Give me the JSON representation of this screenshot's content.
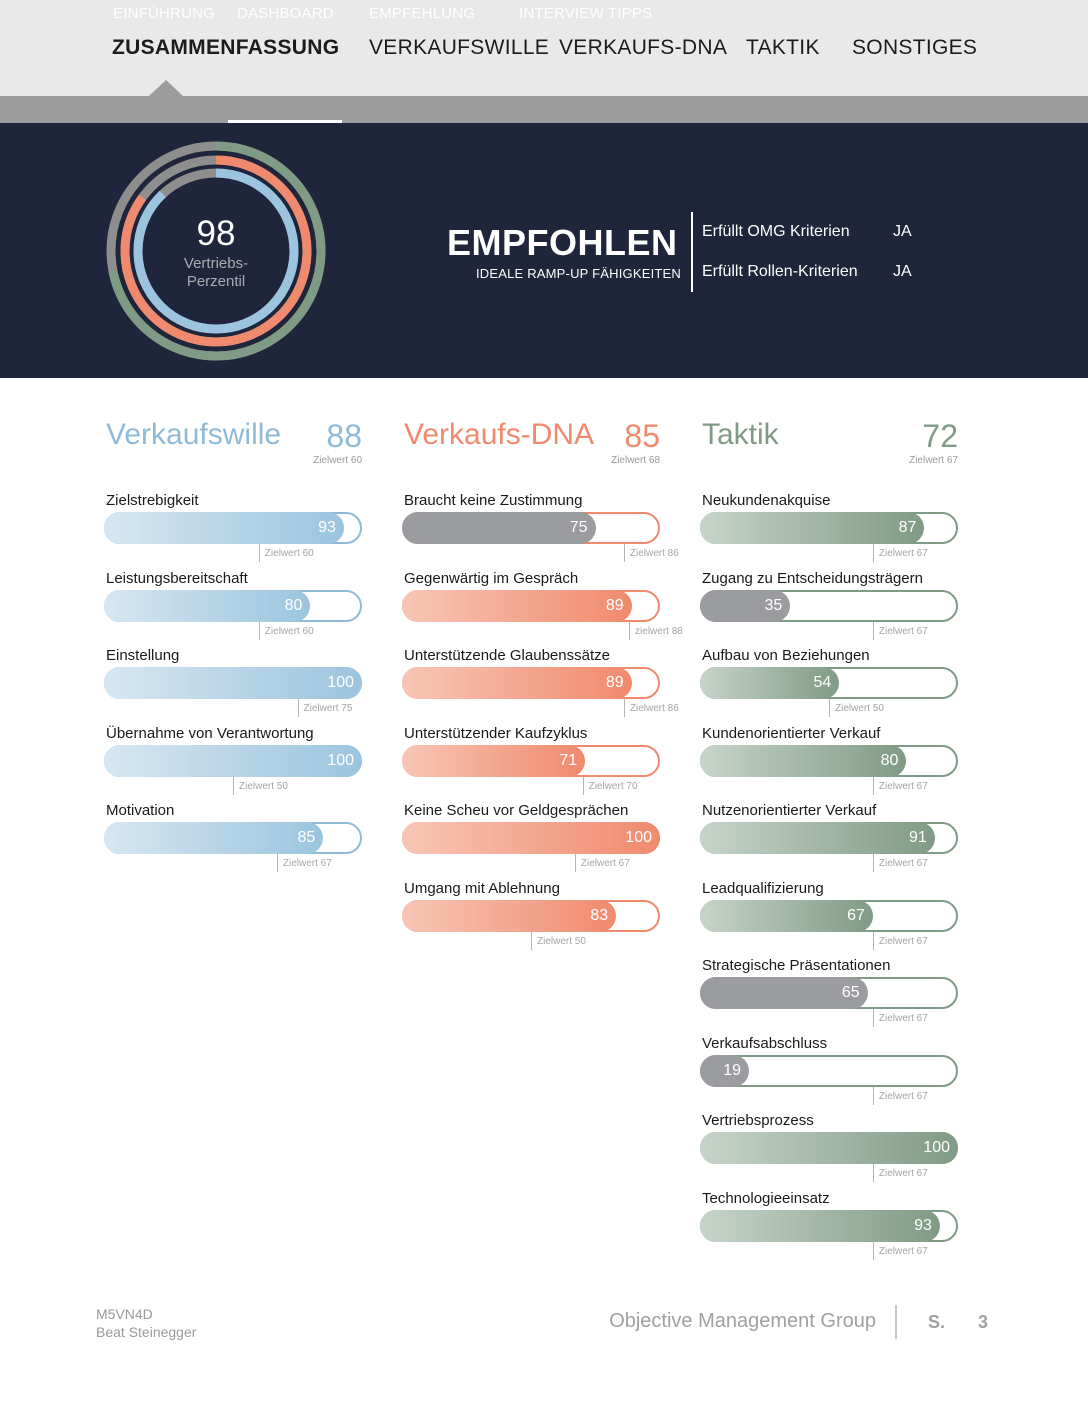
{
  "nav": {
    "tabs": [
      {
        "label": "ZUSAMMENFASSUNG",
        "active": true
      },
      {
        "label": "VERKAUFSWILLE",
        "active": false
      },
      {
        "label": "VERKAUFS-DNA",
        "active": false
      },
      {
        "label": "TAKTIK",
        "active": false
      },
      {
        "label": "SONSTIGES",
        "active": false
      }
    ],
    "subtabs": [
      {
        "label": "EINFÜHRUNG",
        "active": false
      },
      {
        "label": "DASHBOARD",
        "active": true
      },
      {
        "label": "EMPFEHLUNG",
        "active": false
      },
      {
        "label": "INTERVIEW TIPPS",
        "active": false
      }
    ]
  },
  "summary": {
    "score": "98",
    "score_label_1": "Vertriebs-",
    "score_label_2": "Perzentil",
    "recommendation": "EMPFOHLEN",
    "recommendation_sub": "IDEALE RAMP-UP FÄHIGKEITEN",
    "criteria": [
      {
        "label": "Erfüllt OMG Kriterien",
        "value": "JA"
      },
      {
        "label": "Erfüllt Rollen-Kriterien",
        "value": "JA"
      }
    ],
    "rings": [
      {
        "color": "#7f9b85",
        "value": 72
      },
      {
        "color": "#f08a6e",
        "value": 85
      },
      {
        "color": "#9cc4de",
        "value": 88
      }
    ]
  },
  "sections": [
    {
      "title": "Verkaufswille",
      "score": "88",
      "target": "Zielwert 60",
      "color": "#8fbbd9",
      "items": [
        {
          "label": "Zielstrebigkeit",
          "value": 93,
          "target": 60,
          "target_label": "Zielwert 60",
          "gray": false
        },
        {
          "label": "Leistungsbereitschaft",
          "value": 80,
          "target": 60,
          "target_label": "Zielwert 60",
          "gray": false
        },
        {
          "label": "Einstellung",
          "value": 100,
          "target": 75,
          "target_label": "Zielwert 75",
          "gray": false
        },
        {
          "label": "Übernahme von Verantwortung",
          "value": 100,
          "target": 50,
          "target_label": "Zielwert 50",
          "gray": false
        },
        {
          "label": "Motivation",
          "value": 85,
          "target": 67,
          "target_label": "Zielwert 67",
          "gray": false
        }
      ]
    },
    {
      "title": "Verkaufs-DNA",
      "score": "85",
      "target": "Zielwert 68",
      "color": "#f08a6e",
      "items": [
        {
          "label": "Braucht keine Zustimmung",
          "value": 75,
          "target": 86,
          "target_label": "Zielwert 86",
          "gray": true
        },
        {
          "label": "Gegenwärtig im Gespräch",
          "value": 89,
          "target": 88,
          "target_label": "zielwert 88",
          "gray": false
        },
        {
          "label": "Unterstützende Glaubenssätze",
          "value": 89,
          "target": 86,
          "target_label": "Zielwert 86",
          "gray": false
        },
        {
          "label": "Unterstützender Kaufzyklus",
          "value": 71,
          "target": 70,
          "target_label": "Zielwert 70",
          "gray": false
        },
        {
          "label": "Keine Scheu vor Geldgesprächen",
          "value": 100,
          "target": 67,
          "target_label": "Zielwert 67",
          "gray": false
        },
        {
          "label": "Umgang mit Ablehnung",
          "value": 83,
          "target": 50,
          "target_label": "Zielwert 50",
          "gray": false
        }
      ]
    },
    {
      "title": "Taktik",
      "score": "72",
      "target": "Zielwert 67",
      "color": "#7f9b85",
      "items": [
        {
          "label": "Neukundenakquise",
          "value": 87,
          "target": 67,
          "target_label": "Zielwert 67",
          "gray": false
        },
        {
          "label": "Zugang zu Entscheidungsträgern",
          "value": 35,
          "target": 67,
          "target_label": "Zielwert 67",
          "gray": true
        },
        {
          "label": "Aufbau von Beziehungen",
          "value": 54,
          "target": 50,
          "target_label": "Zielwert 50",
          "gray": false
        },
        {
          "label": "Kundenorientierter Verkauf",
          "value": 80,
          "target": 67,
          "target_label": "Zielwert 67",
          "gray": false
        },
        {
          "label": "Nutzenorientierter Verkauf",
          "value": 91,
          "target": 67,
          "target_label": "Zielwert 67",
          "gray": false
        },
        {
          "label": "Leadqualifizierung",
          "value": 67,
          "target": 67,
          "target_label": "Zielwert 67",
          "gray": false
        },
        {
          "label": "Strategische Präsentationen",
          "value": 65,
          "target": 67,
          "target_label": "Zielwert 67",
          "gray": true
        },
        {
          "label": "Verkaufsabschluss",
          "value": 19,
          "target": 67,
          "target_label": "Zielwert 67",
          "gray": true
        },
        {
          "label": "Vertriebsprozess",
          "value": 100,
          "target": 67,
          "target_label": "Zielwert 67",
          "gray": false
        },
        {
          "label": "Technologieeinsatz",
          "value": 93,
          "target": 67,
          "target_label": "Zielwert 67",
          "gray": false
        }
      ]
    }
  ],
  "gradients": {
    "blue": [
      "#d6e7f2",
      "#9cc4de"
    ],
    "orange": [
      "#f8c6b6",
      "#f08a6e"
    ],
    "green": [
      "#c7d4ca",
      "#7f9b85"
    ],
    "gray": "#9b9ca0"
  },
  "footer": {
    "id": "M5VN4D",
    "name": "Beat Steinegger",
    "company": "Objective Management Group",
    "page_label": "S.",
    "page_num": "3"
  }
}
